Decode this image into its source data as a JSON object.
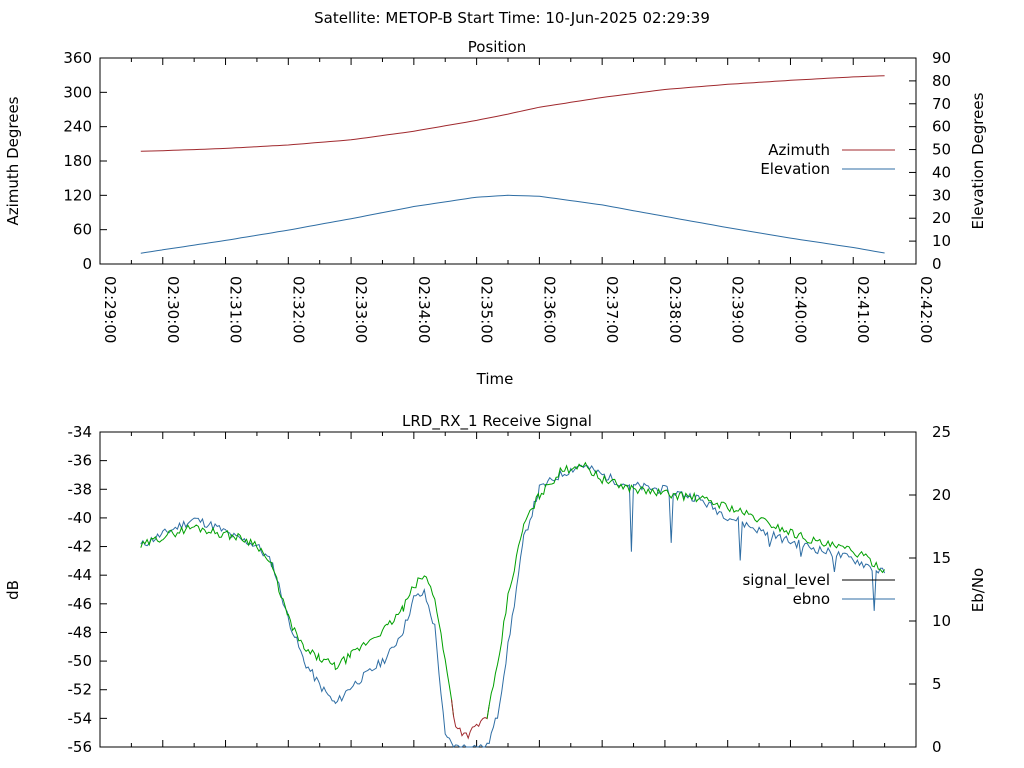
{
  "header": {
    "text": "Satellite: METOP-B    Start Time: 10-Jun-2025 02:29:39"
  },
  "chart_data": [
    {
      "type": "line",
      "title": "Position",
      "xlabel": "Time",
      "ylabel": "Azimuth Degrees",
      "y2label": "Elevation Degrees",
      "xlim": [
        "02:29:00",
        "02:42:00"
      ],
      "ylim": [
        0,
        360
      ],
      "y2lim": [
        0,
        90
      ],
      "x_ticks": [
        "02:29:00",
        "02:30:00",
        "02:31:00",
        "02:32:00",
        "02:33:00",
        "02:34:00",
        "02:35:00",
        "02:36:00",
        "02:37:00",
        "02:38:00",
        "02:39:00",
        "02:40:00",
        "02:41:00",
        "02:42:00"
      ],
      "y_ticks": [
        0,
        60,
        120,
        180,
        240,
        300,
        360
      ],
      "y2_ticks": [
        0,
        10,
        20,
        30,
        40,
        50,
        60,
        70,
        80,
        90
      ],
      "legend_position": "right",
      "series": [
        {
          "name": "Azimuth",
          "axis": "left",
          "color": "#a0292e",
          "x": [
            "02:29:39",
            "02:30:00",
            "02:31:00",
            "02:32:00",
            "02:33:00",
            "02:34:00",
            "02:35:00",
            "02:35:30",
            "02:36:00",
            "02:37:00",
            "02:38:00",
            "02:39:00",
            "02:40:00",
            "02:41:00",
            "02:41:30"
          ],
          "values": [
            197,
            198,
            202,
            208,
            217,
            232,
            251,
            262,
            274,
            291,
            305,
            314,
            321,
            327,
            329
          ]
        },
        {
          "name": "Elevation",
          "axis": "right",
          "color": "#2f6ea4",
          "x": [
            "02:29:39",
            "02:30:00",
            "02:31:00",
            "02:32:00",
            "02:33:00",
            "02:34:00",
            "02:35:00",
            "02:35:30",
            "02:36:00",
            "02:37:00",
            "02:38:00",
            "02:39:00",
            "02:40:00",
            "02:41:00",
            "02:41:30"
          ],
          "values": [
            4.7,
            6.2,
            10.3,
            14.8,
            19.8,
            25.1,
            29.2,
            30,
            29.6,
            25.8,
            20.8,
            15.9,
            11.3,
            7.2,
            4.8
          ]
        }
      ]
    },
    {
      "type": "line",
      "title": "LRD_RX_1 Receive Signal",
      "ylabel": "dB",
      "y2label": "Eb/No",
      "xlim": [
        "02:29:00",
        "02:42:00"
      ],
      "ylim": [
        -56,
        -34
      ],
      "y2lim": [
        0,
        25
      ],
      "y_ticks": [
        -56,
        -54,
        -52,
        -50,
        -48,
        -46,
        -44,
        -42,
        -40,
        -38,
        -36,
        -34
      ],
      "y2_ticks": [
        0,
        5,
        10,
        15,
        20,
        25
      ],
      "legend_position": "right",
      "series": [
        {
          "name": "signal_level",
          "axis": "left",
          "color": "#00a000",
          "low_color": "#a0292e",
          "x": [
            "02:29:39",
            "02:30:00",
            "02:30:30",
            "02:30:50",
            "02:31:10",
            "02:31:30",
            "02:31:45",
            "02:32:00",
            "02:32:15",
            "02:32:30",
            "02:32:45",
            "02:33:00",
            "02:33:20",
            "02:33:35",
            "02:33:50",
            "02:34:00",
            "02:34:10",
            "02:34:20",
            "02:34:30",
            "02:34:40",
            "02:34:50",
            "02:35:00",
            "02:35:10",
            "02:35:20",
            "02:35:30",
            "02:35:45",
            "02:36:00",
            "02:36:20",
            "02:36:40",
            "02:37:00",
            "02:37:20",
            "02:37:40",
            "02:38:00",
            "02:38:30",
            "02:39:00",
            "02:39:30",
            "02:40:00",
            "02:40:30",
            "02:41:00",
            "02:41:30"
          ],
          "values": [
            -42,
            -41.3,
            -40.6,
            -41,
            -41.3,
            -41.8,
            -43.5,
            -47,
            -49.2,
            -49.8,
            -50.4,
            -49.6,
            -48.4,
            -47.6,
            -46.3,
            -44.8,
            -44,
            -45.5,
            -50,
            -54.5,
            -55.2,
            -54.6,
            -53.8,
            -50.5,
            -45.5,
            -40.5,
            -38.4,
            -36.8,
            -36.2,
            -37.3,
            -37.8,
            -38.1,
            -38.3,
            -38.6,
            -39.2,
            -40.1,
            -41,
            -41.8,
            -42.3,
            -43.6
          ]
        },
        {
          "name": "ebno",
          "axis": "right",
          "color": "#2f6ea4",
          "x": [
            "02:29:39",
            "02:30:00",
            "02:30:30",
            "02:30:50",
            "02:31:10",
            "02:31:30",
            "02:31:45",
            "02:32:00",
            "02:32:15",
            "02:32:30",
            "02:32:45",
            "02:33:00",
            "02:33:20",
            "02:33:35",
            "02:33:50",
            "02:34:00",
            "02:34:10",
            "02:34:20",
            "02:34:30",
            "02:34:40",
            "02:35:00",
            "02:35:10",
            "02:35:20",
            "02:35:30",
            "02:35:45",
            "02:36:00",
            "02:36:20",
            "02:36:40",
            "02:37:00",
            "02:37:20",
            "02:37:40",
            "02:38:00",
            "02:38:30",
            "02:39:00",
            "02:39:30",
            "02:40:00",
            "02:40:30",
            "02:41:00",
            "02:41:30"
          ],
          "values": [
            16,
            16.9,
            18.1,
            17.5,
            16.6,
            16,
            14.5,
            10.2,
            6.8,
            4.9,
            3.4,
            4.8,
            6.1,
            7.2,
            9.3,
            11.8,
            12.2,
            9.5,
            0.8,
            0,
            0,
            0,
            2.5,
            8,
            16.5,
            20.5,
            21.6,
            22.4,
            21.6,
            20.9,
            20.6,
            20.4,
            19.8,
            18.3,
            17.2,
            16.3,
            15.6,
            14.9,
            13.8
          ]
        }
      ]
    }
  ]
}
